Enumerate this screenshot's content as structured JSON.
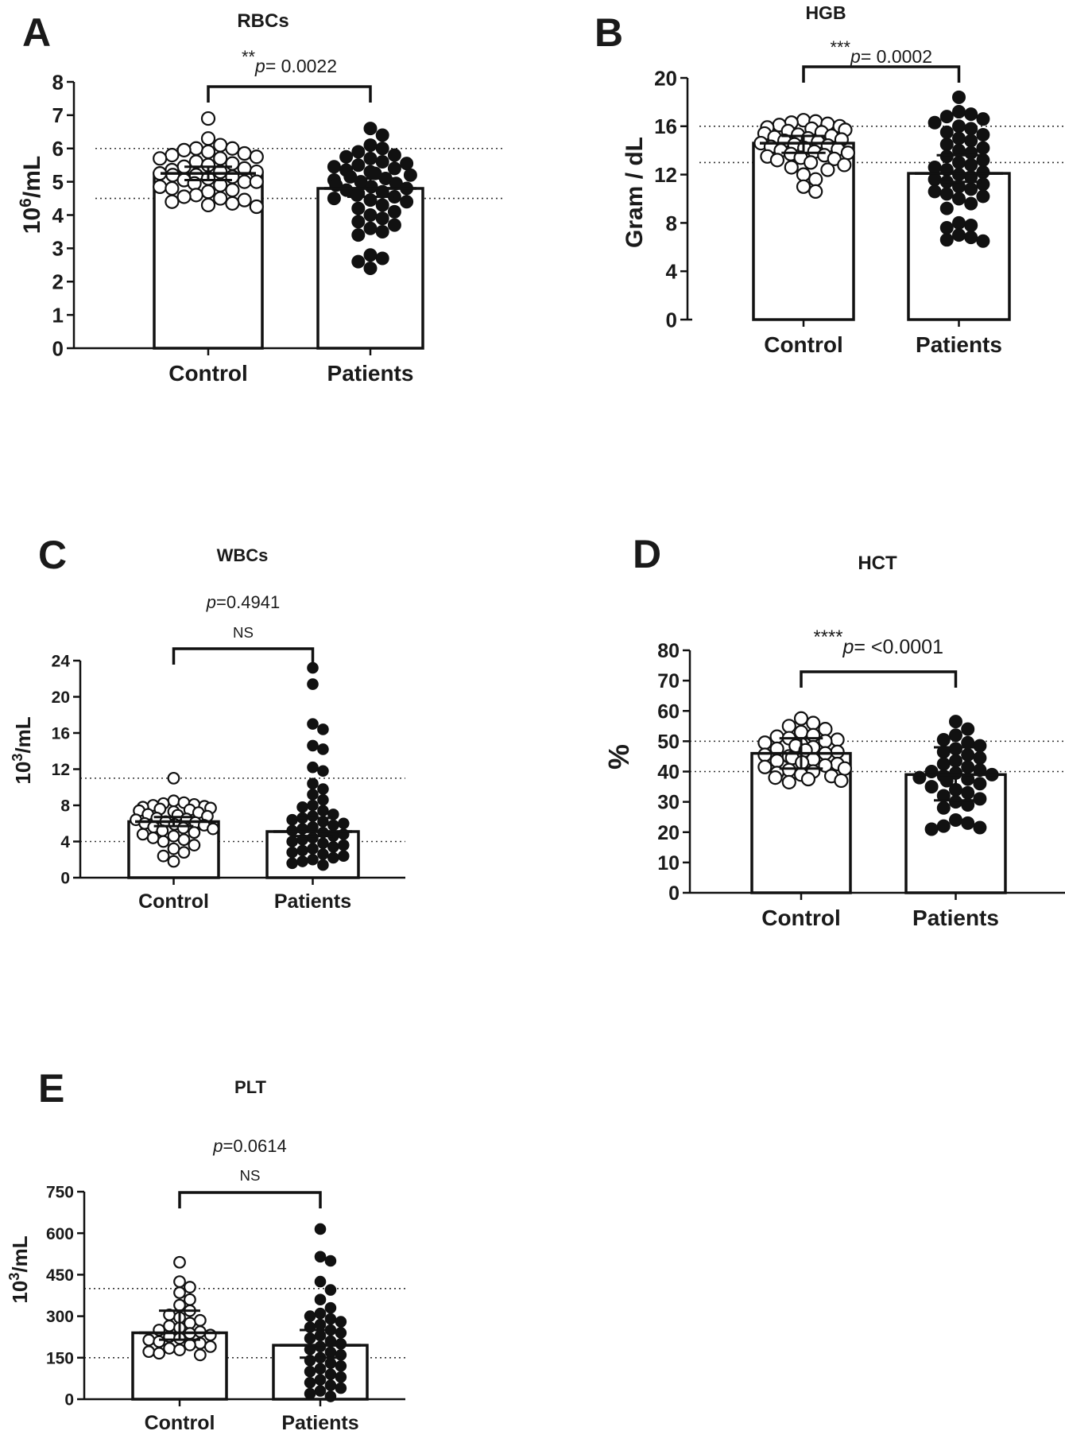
{
  "chart_data": [
    {
      "panel": "A",
      "type": "bar",
      "title": "RBCs",
      "ylabel": "10^6/mL",
      "categories": [
        "Control",
        "Patients"
      ],
      "yticks": [
        0,
        1,
        2,
        3,
        4,
        5,
        6,
        7,
        8
      ],
      "ylim": [
        0,
        8
      ],
      "reference_lines": [
        4.5,
        6.0
      ],
      "annotation": {
        "stars": "**",
        "p_label": "p",
        "p_text": "= 0.0022",
        "ns": ""
      },
      "series": [
        {
          "category": "Control",
          "mean": 5.25,
          "err_low": 5.05,
          "err_high": 5.45,
          "filled": false,
          "points": [
            6.9,
            6.3,
            6.1,
            6.0,
            6.0,
            5.95,
            5.9,
            5.85,
            5.8,
            5.75,
            5.7,
            5.7,
            5.6,
            5.55,
            5.5,
            5.45,
            5.4,
            5.35,
            5.3,
            5.3,
            5.25,
            5.2,
            5.2,
            5.15,
            5.1,
            5.05,
            5.0,
            5.0,
            4.95,
            4.9,
            4.85,
            4.8,
            4.75,
            4.7,
            4.6,
            4.55,
            4.5,
            4.45,
            4.4,
            4.35,
            4.3,
            4.25
          ]
        },
        {
          "category": "Patients",
          "mean": 4.8,
          "err_low": 4.55,
          "err_high": 5.1,
          "filled": true,
          "points": [
            6.6,
            6.4,
            6.1,
            6.0,
            5.9,
            5.8,
            5.75,
            5.7,
            5.6,
            5.55,
            5.5,
            5.45,
            5.4,
            5.35,
            5.3,
            5.25,
            5.2,
            5.15,
            5.1,
            5.05,
            5.0,
            4.95,
            4.9,
            4.85,
            4.8,
            4.75,
            4.7,
            4.65,
            4.6,
            4.55,
            4.5,
            4.45,
            4.4,
            4.3,
            4.2,
            4.1,
            4.0,
            3.9,
            3.8,
            3.7,
            3.6,
            3.5,
            3.4,
            2.8,
            2.7,
            2.6,
            2.4
          ]
        }
      ]
    },
    {
      "panel": "B",
      "type": "bar",
      "title": "HGB",
      "ylabel": "Gram / dL",
      "categories": [
        "Control",
        "Patients"
      ],
      "yticks": [
        0,
        4,
        8,
        12,
        16,
        20
      ],
      "ylim": [
        0,
        20
      ],
      "reference_lines": [
        13,
        16
      ],
      "annotation": {
        "stars": "***",
        "p_label": "p",
        "p_text": "= 0.0002",
        "ns": ""
      },
      "series": [
        {
          "category": "Control",
          "mean": 14.6,
          "err_low": 13.8,
          "err_high": 15.2,
          "filled": false,
          "points": [
            16.5,
            16.4,
            16.3,
            16.2,
            16.1,
            16.0,
            15.9,
            15.8,
            15.7,
            15.6,
            15.5,
            15.4,
            15.3,
            15.2,
            15.1,
            15.0,
            14.9,
            14.8,
            14.7,
            14.6,
            14.5,
            14.4,
            14.3,
            14.2,
            14.1,
            14.0,
            13.9,
            13.8,
            13.7,
            13.6,
            13.5,
            13.4,
            13.3,
            13.2,
            13.0,
            12.8,
            12.6,
            12.4,
            12.0,
            11.6,
            11.0,
            10.6
          ]
        },
        {
          "category": "Patients",
          "mean": 12.1,
          "err_low": 11.4,
          "err_high": 13.6,
          "filled": true,
          "points": [
            18.4,
            17.2,
            17.0,
            16.8,
            16.6,
            16.3,
            16.0,
            15.8,
            15.5,
            15.3,
            15.0,
            14.8,
            14.5,
            14.2,
            14.0,
            13.8,
            13.5,
            13.2,
            13.0,
            12.8,
            12.6,
            12.4,
            12.2,
            12.0,
            11.8,
            11.6,
            11.4,
            11.2,
            11.0,
            10.8,
            10.6,
            10.4,
            10.2,
            10.0,
            9.6,
            9.2,
            8.0,
            7.8,
            7.6,
            7.0,
            6.8,
            6.6,
            6.5
          ]
        }
      ]
    },
    {
      "panel": "C",
      "type": "bar",
      "title": "WBCs",
      "ylabel": "10^3/mL",
      "categories": [
        "Control",
        "Patients"
      ],
      "yticks": [
        0,
        4,
        8,
        12,
        16,
        20,
        24
      ],
      "ylim": [
        0,
        24
      ],
      "reference_lines": [
        4,
        11
      ],
      "annotation": {
        "stars": "",
        "p_label": "p",
        "p_text": "=0.4941",
        "ns": "NS"
      },
      "series": [
        {
          "category": "Control",
          "mean": 6.2,
          "err_low": 5.7,
          "err_high": 6.7,
          "filled": false,
          "points": [
            11.0,
            8.5,
            8.3,
            8.2,
            8.1,
            8.0,
            7.9,
            7.8,
            7.7,
            7.6,
            7.5,
            7.4,
            7.3,
            7.2,
            7.0,
            6.9,
            6.8,
            6.6,
            6.5,
            6.4,
            6.2,
            6.1,
            6.0,
            5.9,
            5.8,
            5.6,
            5.5,
            5.4,
            5.2,
            5.0,
            4.8,
            4.6,
            4.4,
            4.2,
            4.0,
            3.6,
            3.2,
            2.8,
            2.4,
            1.8
          ]
        },
        {
          "category": "Patients",
          "mean": 5.1,
          "err_low": 4.6,
          "err_high": 6.6,
          "filled": true,
          "points": [
            23.2,
            21.4,
            17.0,
            16.4,
            14.6,
            14.2,
            12.2,
            11.8,
            10.4,
            9.8,
            9.2,
            8.6,
            8.0,
            7.8,
            7.4,
            7.0,
            6.8,
            6.6,
            6.4,
            6.2,
            6.0,
            5.8,
            5.6,
            5.4,
            5.2,
            5.0,
            4.8,
            4.6,
            4.4,
            4.2,
            4.0,
            3.8,
            3.6,
            3.4,
            3.2,
            3.0,
            2.8,
            2.6,
            2.4,
            2.2,
            2.0,
            1.8,
            1.6,
            1.4
          ]
        }
      ]
    },
    {
      "panel": "D",
      "type": "bar",
      "title": "HCT",
      "ylabel": "%",
      "categories": [
        "Control",
        "Patients"
      ],
      "yticks": [
        0,
        10,
        20,
        30,
        40,
        50,
        60,
        70,
        80
      ],
      "ylim": [
        0,
        80
      ],
      "reference_lines": [
        40,
        50
      ],
      "annotation": {
        "stars": "****",
        "p_label": "p",
        "p_text": "= <0.0001",
        "ns": ""
      },
      "series": [
        {
          "category": "Control",
          "mean": 46,
          "err_low": 41,
          "err_high": 51,
          "filled": false,
          "points": [
            57.5,
            56,
            55,
            54,
            53,
            52,
            51.5,
            51,
            50.5,
            50,
            49.5,
            49,
            48.5,
            48,
            47.5,
            47,
            46.5,
            46,
            45.5,
            45,
            44.5,
            44,
            43.5,
            43,
            42.5,
            42,
            41.5,
            41,
            40.5,
            40,
            39.5,
            39,
            38.5,
            38,
            37.5,
            37,
            36.5
          ]
        },
        {
          "category": "Patients",
          "mean": 39,
          "err_low": 30.5,
          "err_high": 48,
          "filled": true,
          "points": [
            56.5,
            54,
            52,
            50.5,
            49.5,
            48.5,
            47.5,
            46.5,
            45.5,
            44.5,
            43.5,
            42.5,
            41.5,
            40.5,
            40,
            39.5,
            39,
            38.5,
            38,
            37.5,
            37,
            36,
            35,
            34,
            33,
            32,
            31,
            30,
            29,
            28,
            24,
            23,
            22,
            21.5,
            21
          ]
        }
      ]
    },
    {
      "panel": "E",
      "type": "bar",
      "title": "PLT",
      "ylabel": "10^3/mL",
      "categories": [
        "Control",
        "Patients"
      ],
      "yticks": [
        0,
        150,
        300,
        450,
        600,
        750
      ],
      "ylim": [
        0,
        750
      ],
      "reference_lines": [
        150,
        400
      ],
      "annotation": {
        "stars": "",
        "p_label": "p",
        "p_text": "=0.0614",
        "ns": "NS"
      },
      "series": [
        {
          "category": "Control",
          "mean": 240,
          "err_low": 215,
          "err_high": 320,
          "filled": false,
          "points": [
            495,
            425,
            405,
            385,
            360,
            340,
            320,
            305,
            295,
            285,
            275,
            265,
            258,
            250,
            244,
            238,
            232,
            226,
            220,
            214,
            208,
            202,
            196,
            190,
            184,
            178,
            172,
            166,
            160
          ]
        },
        {
          "category": "Patients",
          "mean": 195,
          "err_low": 150,
          "err_high": 250,
          "filled": true,
          "points": [
            615,
            515,
            500,
            425,
            395,
            360,
            330,
            310,
            300,
            290,
            280,
            270,
            260,
            250,
            240,
            230,
            220,
            210,
            200,
            190,
            180,
            170,
            160,
            150,
            140,
            130,
            120,
            110,
            100,
            90,
            80,
            70,
            60,
            50,
            40,
            30,
            20,
            10
          ]
        }
      ]
    }
  ]
}
